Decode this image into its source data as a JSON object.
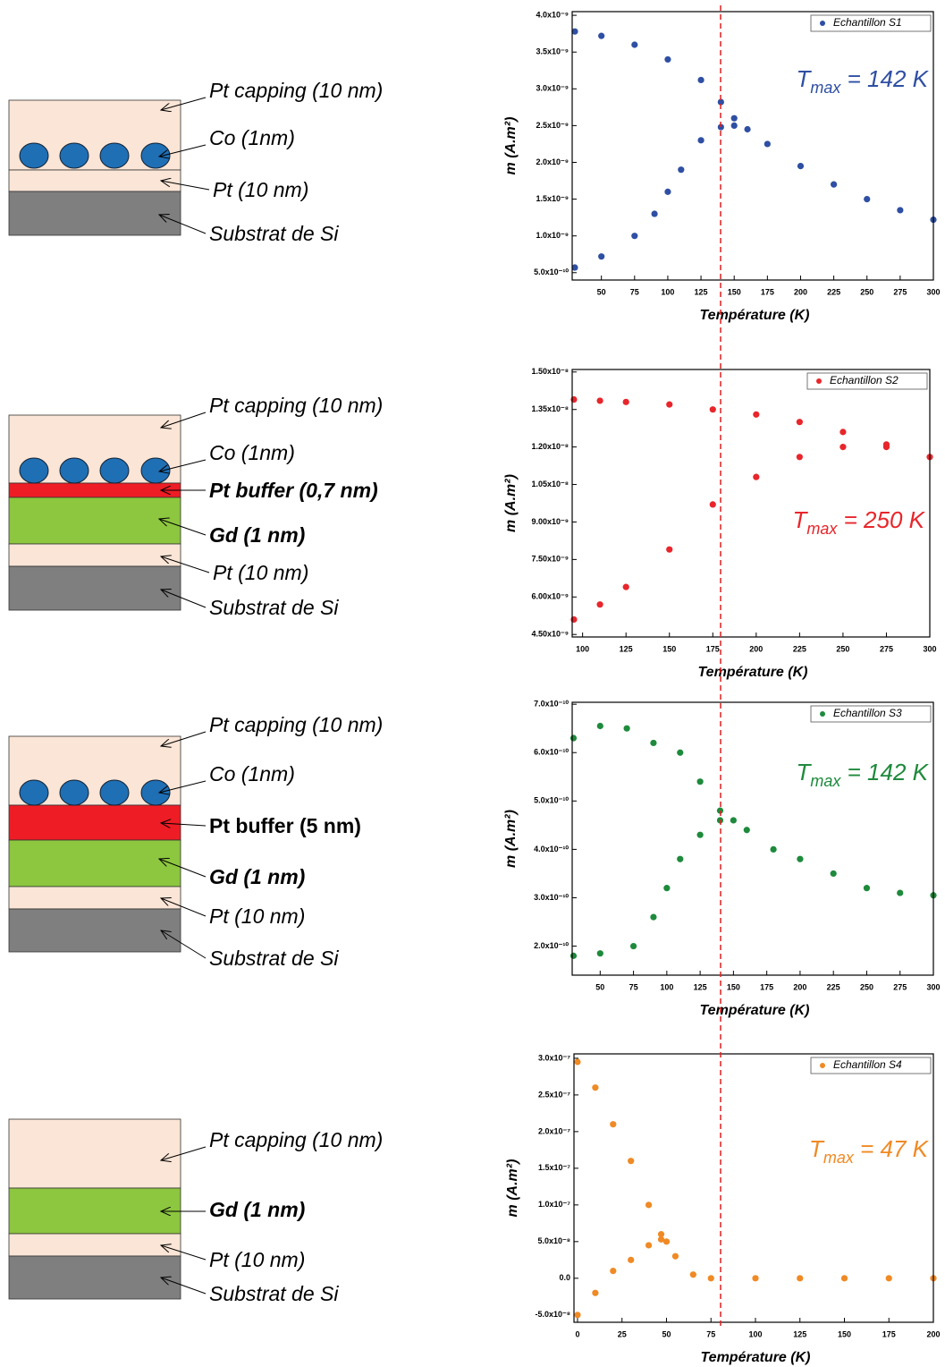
{
  "diagrams": [
    {
      "labels": [
        "Pt capping (10 nm)",
        "Co (1nm)",
        "Pt (10 nm)",
        "Substrat de Si"
      ]
    },
    {
      "labels": [
        "Pt capping (10 nm)",
        "Co (1nm)",
        "Pt buffer (0,7 nm)",
        "Gd (1 nm)",
        "Pt (10 nm)",
        "Substrat de Si"
      ]
    },
    {
      "labels": [
        "Pt capping (10 nm)",
        "Co (1nm)",
        "Pt buffer (5 nm)",
        "Gd (1 nm)",
        "Pt (10 nm)",
        "Substrat de Si"
      ]
    },
    {
      "labels": [
        "Pt capping (10 nm)",
        "Gd (1 nm)",
        "Pt (10 nm)",
        "Substrat de Si"
      ]
    }
  ],
  "chart_data": [
    {
      "type": "scatter",
      "xlabel": "Température (K)",
      "ylabel": "m (A.m²)",
      "annotation": [
        "T",
        "max",
        " = 142 K"
      ],
      "xlim": [
        28,
        300
      ],
      "xticks": [
        50,
        75,
        100,
        125,
        150,
        175,
        200,
        225,
        250,
        275,
        300
      ],
      "ylim": [
        4e-10,
        4.05e-09
      ],
      "yticks": [
        {
          "value": 5e-10,
          "label": "5.0x10⁻¹⁰"
        },
        {
          "value": 1e-09,
          "label": "1.0x10⁻⁹"
        },
        {
          "value": 1.5e-09,
          "label": "1.5x10⁻⁹"
        },
        {
          "value": 2e-09,
          "label": "2.0x10⁻⁹"
        },
        {
          "value": 2.5e-09,
          "label": "2.5x10⁻⁹"
        },
        {
          "value": 3e-09,
          "label": "3.0x10⁻⁹"
        },
        {
          "value": 3.5e-09,
          "label": "3.5x10⁻⁹"
        },
        {
          "value": 4e-09,
          "label": "4.0x10⁻⁹"
        }
      ],
      "series": [
        {
          "name": "Echantillon S1",
          "color": "#2e4fa3",
          "x": [
            30,
            50,
            75,
            100,
            125,
            140,
            150,
            175,
            200,
            225,
            250,
            275,
            300,
            30,
            50,
            75,
            90,
            100,
            110,
            125,
            140,
            150,
            160
          ],
          "values": [
            3.78e-09,
            3.72e-09,
            3.6e-09,
            3.4e-09,
            3.12e-09,
            2.82e-09,
            2.6e-09,
            2.25e-09,
            1.95e-09,
            1.7e-09,
            1.5e-09,
            1.35e-09,
            1.22e-09,
            5.7e-10,
            7.2e-10,
            1e-09,
            1.3e-09,
            1.6e-09,
            1.9e-09,
            2.3e-09,
            2.48e-09,
            2.5e-09,
            2.45e-09
          ]
        }
      ]
    },
    {
      "type": "scatter",
      "xlabel": "Température (K)",
      "ylabel": "m (A.m²)",
      "annotation": [
        "T",
        "max",
        " = 250 K"
      ],
      "xlim": [
        94,
        300
      ],
      "xticks": [
        100,
        125,
        150,
        175,
        200,
        225,
        250,
        275,
        300
      ],
      "ylim": [
        4.4e-09,
        1.51e-08
      ],
      "yticks": [
        {
          "value": 4.5e-09,
          "label": "4.50x10⁻⁹"
        },
        {
          "value": 6e-09,
          "label": "6.00x10⁻⁹"
        },
        {
          "value": 7.5e-09,
          "label": "7.50x10⁻⁹"
        },
        {
          "value": 9e-09,
          "label": "9.00x10⁻⁹"
        },
        {
          "value": 1.05e-08,
          "label": "1.05x10⁻⁸"
        },
        {
          "value": 1.2e-08,
          "label": "1.20x10⁻⁸"
        },
        {
          "value": 1.35e-08,
          "label": "1.35x10⁻⁸"
        },
        {
          "value": 1.5e-08,
          "label": "1.50x10⁻⁸"
        }
      ],
      "series": [
        {
          "name": "Echantillon S2",
          "color": "#e8262b",
          "x": [
            95,
            110,
            125,
            150,
            175,
            200,
            225,
            250,
            275,
            300,
            95,
            110,
            125,
            150,
            175,
            200,
            225,
            250,
            275
          ],
          "values": [
            1.39e-08,
            1.385e-08,
            1.38e-08,
            1.37e-08,
            1.35e-08,
            1.33e-08,
            1.3e-08,
            1.26e-08,
            1.21e-08,
            1.16e-08,
            5.1e-09,
            5.7e-09,
            6.4e-09,
            7.9e-09,
            9.7e-09,
            1.08e-08,
            1.16e-08,
            1.2e-08,
            1.2e-08
          ]
        }
      ]
    },
    {
      "type": "scatter",
      "xlabel": "Température (K)",
      "ylabel": "m (A.m²)",
      "annotation": [
        "T",
        "max",
        " = 142 K"
      ],
      "xlim": [
        29,
        300
      ],
      "xticks": [
        50,
        75,
        100,
        125,
        150,
        175,
        200,
        225,
        250,
        275,
        300
      ],
      "ylim": [
        1.4e-10,
        7.04e-10
      ],
      "yticks": [
        {
          "value": 2e-10,
          "label": "2.0x10⁻¹⁰"
        },
        {
          "value": 3e-10,
          "label": "3.0x10⁻¹⁰"
        },
        {
          "value": 4e-10,
          "label": "4.0x10⁻¹⁰"
        },
        {
          "value": 5e-10,
          "label": "5.0x10⁻¹⁰"
        },
        {
          "value": 6e-10,
          "label": "6.0x10⁻¹⁰"
        },
        {
          "value": 7e-10,
          "label": "7.0x10⁻¹⁰"
        }
      ],
      "series": [
        {
          "name": "Echantillon S3",
          "color": "#1e8a3c",
          "x": [
            30,
            50,
            70,
            90,
            110,
            125,
            140,
            160,
            180,
            200,
            225,
            250,
            275,
            300,
            30,
            50,
            75,
            90,
            100,
            110,
            125,
            140,
            150
          ],
          "values": [
            6.3e-10,
            6.55e-10,
            6.5e-10,
            6.2e-10,
            6e-10,
            5.4e-10,
            4.8e-10,
            4.4e-10,
            4e-10,
            3.8e-10,
            3.5e-10,
            3.2e-10,
            3.1e-10,
            3.05e-10,
            1.8e-10,
            1.85e-10,
            2e-10,
            2.6e-10,
            3.2e-10,
            3.8e-10,
            4.3e-10,
            4.6e-10,
            4.6e-10
          ]
        }
      ]
    },
    {
      "type": "scatter",
      "xlabel": "Température (K)",
      "ylabel": "m (A.m²)",
      "annotation": [
        "T",
        "max",
        " = 47 K"
      ],
      "xlim": [
        -2,
        200
      ],
      "xticks": [
        0,
        25,
        50,
        75,
        100,
        125,
        150,
        175,
        200
      ],
      "ylim": [
        -6e-08,
        3.06e-07
      ],
      "yticks": [
        {
          "value": -5e-08,
          "label": "-5.0x10⁻⁸"
        },
        {
          "value": 0,
          "label": "0.0"
        },
        {
          "value": 5e-08,
          "label": "5.0x10⁻⁸"
        },
        {
          "value": 1e-07,
          "label": "1.0x10⁻⁷"
        },
        {
          "value": 1.5e-07,
          "label": "1.5x10⁻⁷"
        },
        {
          "value": 2e-07,
          "label": "2.0x10⁻⁷"
        },
        {
          "value": 2.5e-07,
          "label": "2.5x10⁻⁷"
        },
        {
          "value": 3e-07,
          "label": "3.0x10⁻⁷"
        }
      ],
      "series": [
        {
          "name": "Echantillon S4",
          "color": "#f08a24",
          "x": [
            0,
            10,
            20,
            30,
            40,
            47,
            55,
            65,
            75,
            100,
            125,
            150,
            175,
            200,
            0,
            10,
            20,
            30,
            40,
            47,
            50
          ],
          "values": [
            2.95e-07,
            2.6e-07,
            2.1e-07,
            1.6e-07,
            1e-07,
            6e-08,
            3e-08,
            5e-09,
            0,
            0,
            0,
            0,
            0,
            0,
            -5e-08,
            -2e-08,
            1e-08,
            2.5e-08,
            4.5e-08,
            5.3e-08,
            5e-08
          ]
        }
      ]
    }
  ]
}
